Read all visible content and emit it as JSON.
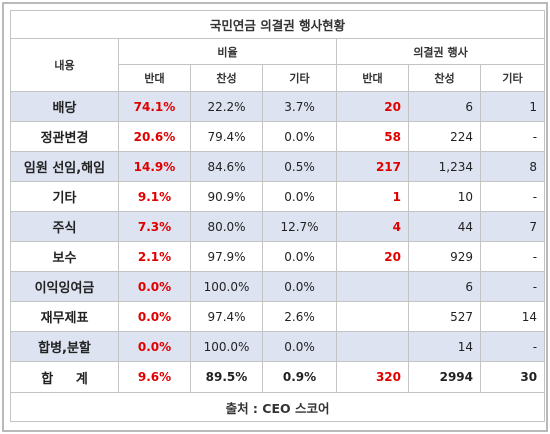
{
  "title": "국민연금 의결권 행사현황",
  "headers": {
    "item": "내용",
    "ratio_group": "비율",
    "exercise_group": "의결권 행사",
    "sub": [
      "반대",
      "찬성",
      "기타",
      "반대",
      "찬성",
      "기타"
    ]
  },
  "rows": [
    {
      "label": "배당",
      "ratio": [
        "74.1%",
        "22.2%",
        "3.7%"
      ],
      "count": [
        "20",
        "6",
        "1"
      ]
    },
    {
      "label": "정관변경",
      "ratio": [
        "20.6%",
        "79.4%",
        "0.0%"
      ],
      "count": [
        "58",
        "224",
        "-"
      ]
    },
    {
      "label": "임원 선임,해임",
      "ratio": [
        "14.9%",
        "84.6%",
        "0.5%"
      ],
      "count": [
        "217",
        "1,234",
        "8"
      ]
    },
    {
      "label": "기타",
      "ratio": [
        "9.1%",
        "90.9%",
        "0.0%"
      ],
      "count": [
        "1",
        "10",
        "-"
      ]
    },
    {
      "label": "주식",
      "ratio": [
        "7.3%",
        "80.0%",
        "12.7%"
      ],
      "count": [
        "4",
        "44",
        "7"
      ]
    },
    {
      "label": "보수",
      "ratio": [
        "2.1%",
        "97.9%",
        "0.0%"
      ],
      "count": [
        "20",
        "929",
        "-"
      ]
    },
    {
      "label": "이익잉여금",
      "ratio": [
        "0.0%",
        "100.0%",
        "0.0%"
      ],
      "count": [
        "",
        "6",
        "-"
      ]
    },
    {
      "label": "재무제표",
      "ratio": [
        "0.0%",
        "97.4%",
        "2.6%"
      ],
      "count": [
        "",
        "527",
        "14"
      ]
    },
    {
      "label": "합병,분할",
      "ratio": [
        "0.0%",
        "100.0%",
        "0.0%"
      ],
      "count": [
        "",
        "14",
        "-"
      ]
    }
  ],
  "total": {
    "label_a": "합",
    "label_b": "계",
    "ratio": [
      "9.6%",
      "89.5%",
      "0.9%"
    ],
    "count": [
      "320",
      "2994",
      "30"
    ]
  },
  "source": "출처 : CEO 스코어",
  "colors": {
    "highlight_red": "#e00000",
    "shaded_row": "#dde3f1",
    "border": "#c4c4c4"
  }
}
